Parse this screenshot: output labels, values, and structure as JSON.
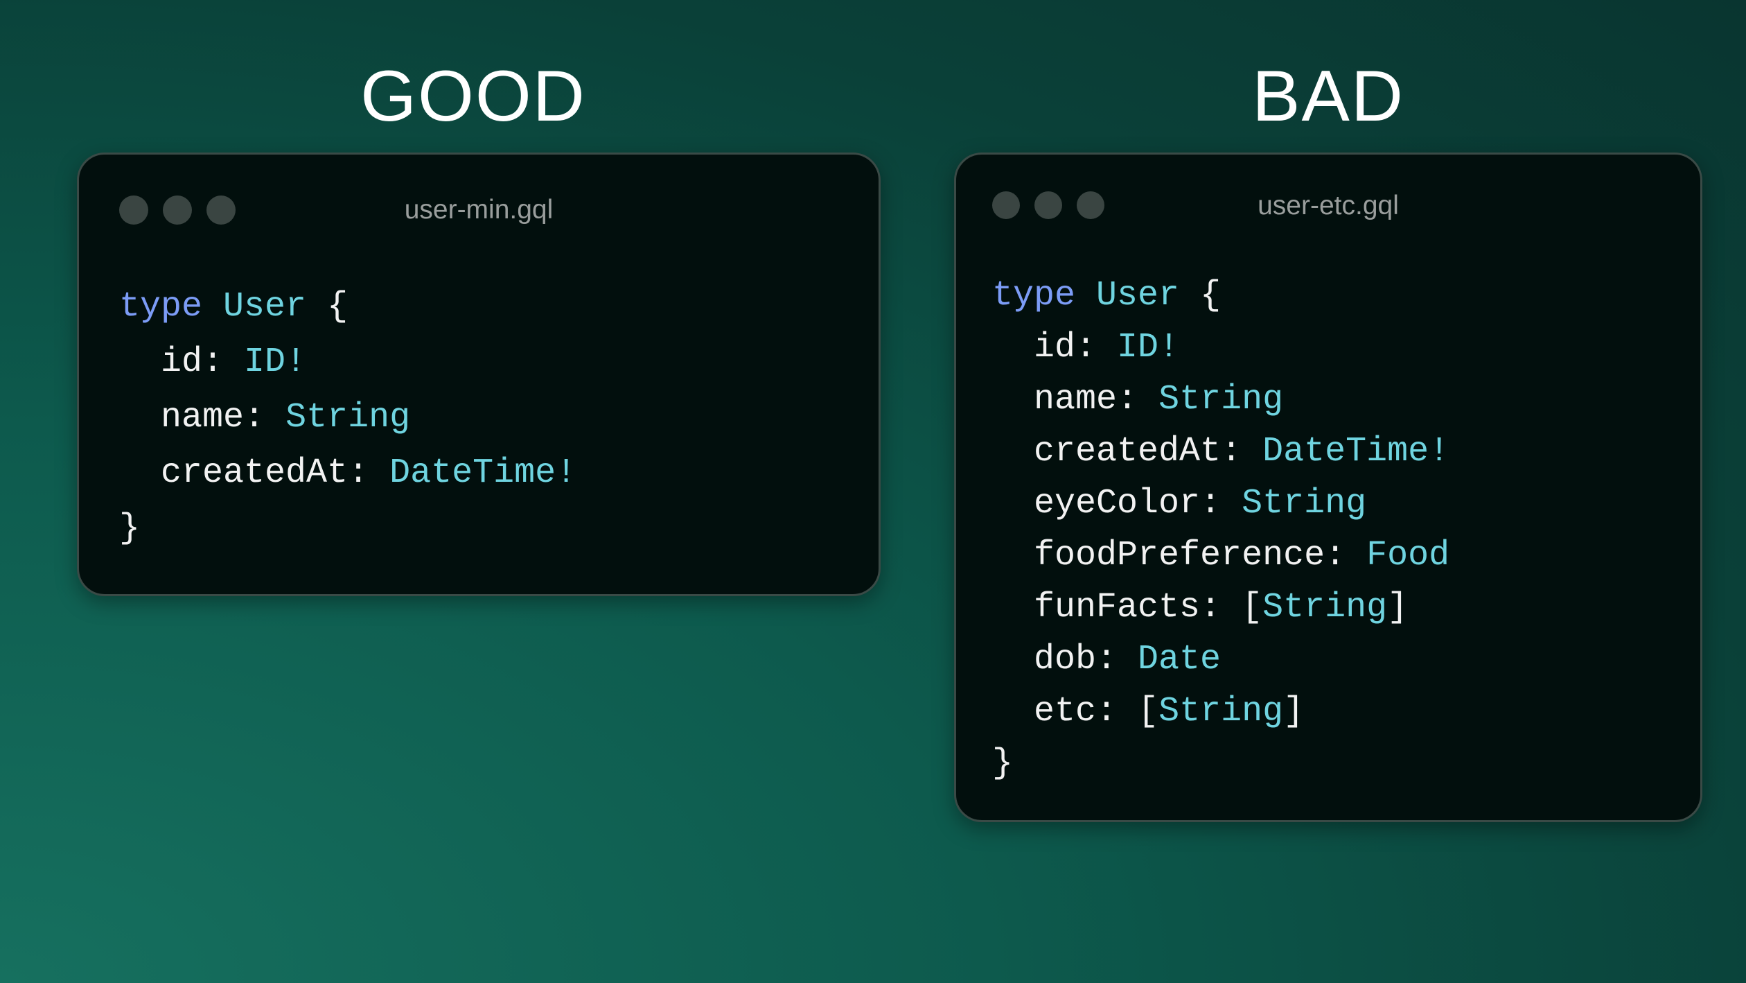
{
  "good": {
    "heading": "GOOD",
    "filename": "user-min.gql",
    "keyword": "type",
    "typename": "User",
    "open": " {",
    "close": "}",
    "fields": [
      {
        "name": "id",
        "type": "ID!"
      },
      {
        "name": "name",
        "type": "String"
      },
      {
        "name": "createdAt",
        "type": "DateTime!"
      }
    ]
  },
  "bad": {
    "heading": "BAD",
    "filename": "user-etc.gql",
    "keyword": "type",
    "typename": "User",
    "open": " {",
    "close": "}",
    "fields": [
      {
        "name": "id",
        "type": "ID!"
      },
      {
        "name": "name",
        "type": "String"
      },
      {
        "name": "createdAt",
        "type": "DateTime!"
      },
      {
        "name": "eyeColor",
        "type": "String"
      },
      {
        "name": "foodPreference",
        "type": "Food"
      },
      {
        "name": "funFacts",
        "type": "String",
        "list": true
      },
      {
        "name": "dob",
        "type": "Date"
      },
      {
        "name": "etc",
        "type": "String",
        "list": true
      }
    ]
  },
  "colors": {
    "keyword": "#7c9cf6",
    "type": "#6fd4e0",
    "text": "#f2f2f2",
    "card": "#020f0d"
  }
}
